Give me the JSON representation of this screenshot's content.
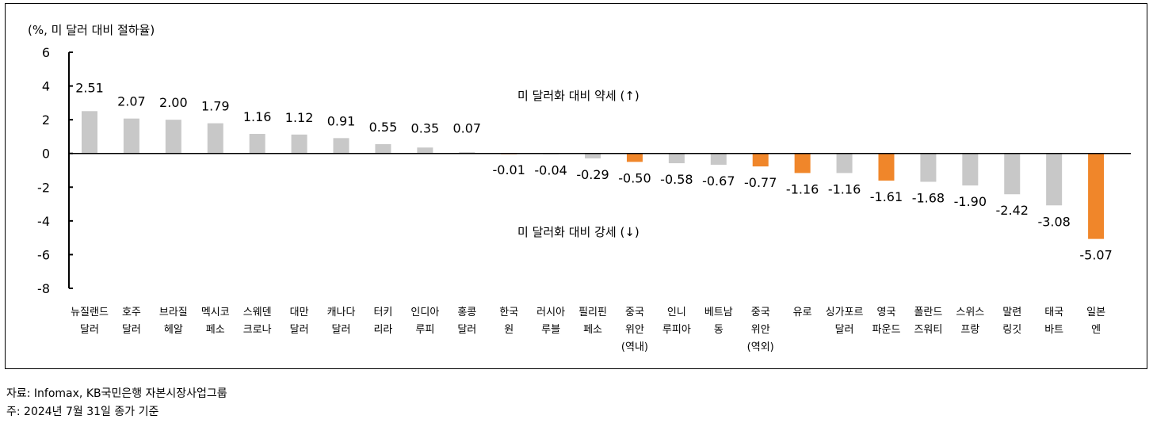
{
  "chart_data": {
    "type": "bar",
    "ylabel": "(%, 미 달러 대비 절하율)",
    "ylim": [
      -8,
      6
    ],
    "yticks": [
      6,
      4,
      2,
      0,
      -2,
      -4,
      -6,
      -8
    ],
    "colors": {
      "default": "#c8c8c8",
      "highlight": "#f0862a",
      "axis": "#000000"
    },
    "categories": [
      [
        "뉴질랜드",
        "달러"
      ],
      [
        "호주",
        "달러"
      ],
      [
        "브라질",
        "헤알"
      ],
      [
        "멕시코",
        "페소"
      ],
      [
        "스웨덴",
        "크로나"
      ],
      [
        "대만",
        "달러"
      ],
      [
        "캐나다",
        "달러"
      ],
      [
        "터키",
        "리라"
      ],
      [
        "인디아",
        "루피"
      ],
      [
        "홍콩",
        "달러"
      ],
      [
        "한국",
        "원"
      ],
      [
        "러시아",
        "루블"
      ],
      [
        "필리핀",
        "페소"
      ],
      [
        "중국",
        "위안",
        "(역내)"
      ],
      [
        "인니",
        "루피아"
      ],
      [
        "베트남",
        "동"
      ],
      [
        "중국",
        "위안",
        "(역외)"
      ],
      [
        "유로"
      ],
      [
        "싱가포르",
        "달러"
      ],
      [
        "영국",
        "파운드"
      ],
      [
        "폴란드",
        "즈워티"
      ],
      [
        "스위스",
        "프랑"
      ],
      [
        "말련",
        "링깃"
      ],
      [
        "태국",
        "바트"
      ],
      [
        "일본",
        "엔"
      ]
    ],
    "values": [
      2.51,
      2.07,
      2.0,
      1.79,
      1.16,
      1.12,
      0.91,
      0.55,
      0.35,
      0.07,
      -0.01,
      -0.04,
      -0.29,
      -0.5,
      -0.58,
      -0.67,
      -0.77,
      -1.16,
      -1.16,
      -1.61,
      -1.68,
      -1.9,
      -2.42,
      -3.08,
      -5.07
    ],
    "value_labels": [
      "2.51",
      "2.07",
      "2.00",
      "1.79",
      "1.16",
      "1.12",
      "0.91",
      "0.55",
      "0.35",
      "0.07",
      "-0.01",
      "-0.04",
      "-0.29",
      "-0.50",
      "-0.58",
      "-0.67",
      "-0.77",
      "-1.16",
      "-1.16",
      "-1.61",
      "-1.68",
      "-1.90",
      "-2.42",
      "-3.08",
      "-5.07"
    ],
    "highlighted": [
      false,
      false,
      false,
      false,
      false,
      false,
      false,
      false,
      false,
      false,
      true,
      false,
      false,
      true,
      false,
      false,
      true,
      true,
      false,
      true,
      false,
      false,
      false,
      false,
      true
    ],
    "annotations": {
      "weak": "미 달러화 대비 약세 (↑)",
      "strong": "미 달러화 대비 강세 (↓)"
    }
  },
  "footnotes": {
    "source": "자료: Infomax, KB국민은행 자본시장사업그룹",
    "note": "주: 2024년 7월 31일 종가 기준"
  }
}
